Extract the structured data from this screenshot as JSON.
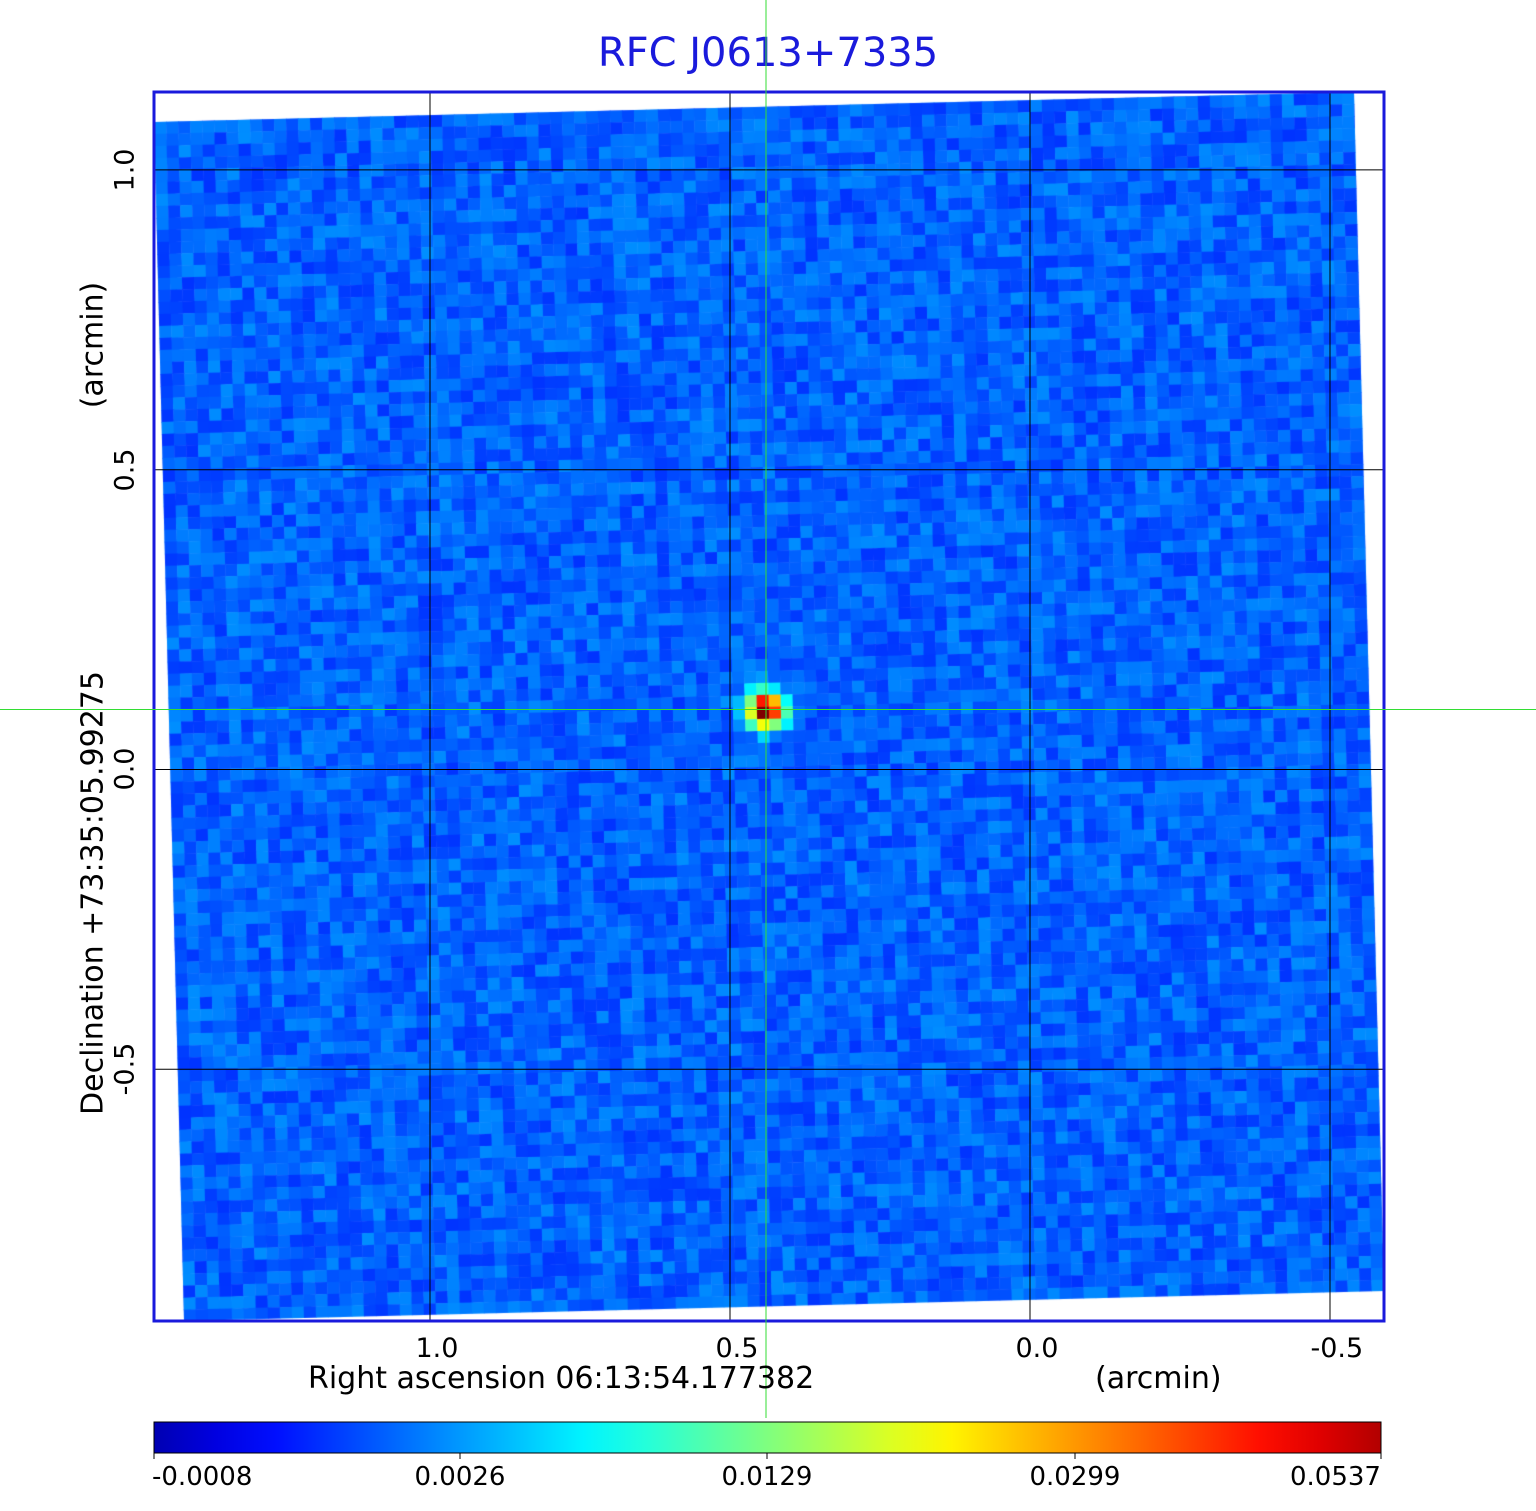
{
  "chart_data": {
    "type": "heatmap",
    "title": "RFC J0613+7335",
    "xlabel": "Right ascension  06:13:54.177382",
    "xunit": "(arcmin)",
    "ylabel": "Declination  +73:35:05.99275",
    "yunit": "(arcmin)",
    "xlim": [
      1.46,
      -0.59
    ],
    "ylim": [
      -0.92,
      1.13
    ],
    "xticks": [
      1.0,
      0.5,
      0.0,
      -0.5
    ],
    "xtick_labels": [
      "1.0",
      "0.5",
      "0.0",
      "-0.5"
    ],
    "yticks": [
      1.0,
      0.5,
      0.0,
      -0.5
    ],
    "ytick_labels": [
      "1.0",
      "0.5",
      "0.0",
      "-0.5"
    ],
    "grid": true,
    "crosshair": {
      "x": 0.44,
      "y": 0.1,
      "color": "#33dd33"
    },
    "peak": {
      "x": 0.44,
      "y": 0.1,
      "value": 0.0537
    },
    "background_level": 0.0005,
    "colormap": "jet",
    "colorbar": {
      "position": "bottom",
      "range": [
        -0.0008,
        0.0537
      ],
      "tick_labels": [
        "-0.0008",
        "0.0026",
        "0.0129",
        "0.0299",
        "0.0537"
      ]
    },
    "colors": {
      "title": "#1a1adc",
      "frame": "#1a1adc",
      "grid": "#000000"
    }
  }
}
